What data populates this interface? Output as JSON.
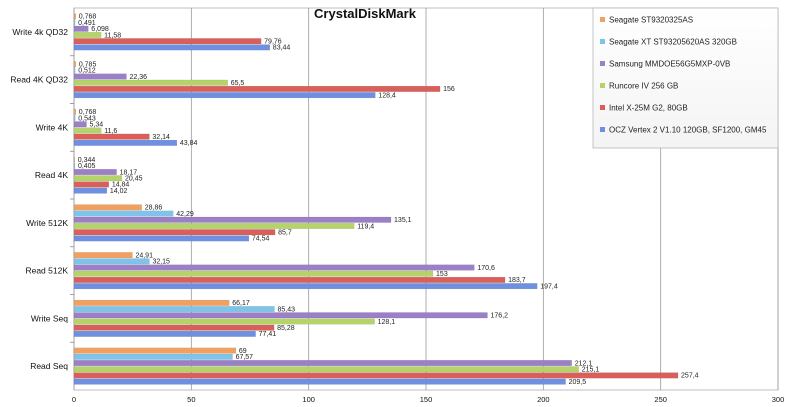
{
  "chart_data": {
    "type": "bar",
    "orientation": "horizontal",
    "title": "CrystalDiskMark",
    "xlabel": "",
    "ylabel": "",
    "xlim": [
      0,
      300
    ],
    "xticks": [
      0,
      50,
      100,
      150,
      200,
      250,
      300
    ],
    "grid": true,
    "legend_position": "top-right",
    "categories": [
      "Write 4k QD32",
      "Read 4K QD32",
      "Write 4K",
      "Read 4K",
      "Write 512K",
      "Read 512K",
      "Write Seq",
      "Read Seq"
    ],
    "series": [
      {
        "name": "Seagate ST9320325AS",
        "color": "#f0a060",
        "values": [
          0.768,
          0.785,
          0.768,
          0.344,
          28.86,
          24.91,
          66.17,
          69
        ],
        "labels": [
          "0,768",
          "0,785",
          "0,768",
          "0,344",
          "28,86",
          "24,91",
          "66,17",
          "69"
        ]
      },
      {
        "name": "Seagate XT ST93205620AS 320GB",
        "color": "#7fc3e8",
        "values": [
          0.491,
          0.512,
          0.543,
          0.405,
          42.29,
          32.15,
          85.43,
          67.57
        ],
        "labels": [
          "0,491",
          "0,512",
          "0,543",
          "0,405",
          "42,29",
          "32,15",
          "85,43",
          "67,57"
        ]
      },
      {
        "name": "Samsung MMDOE56G5MXP-0VB",
        "color": "#9b7fc7",
        "values": [
          6.098,
          22.36,
          5.34,
          18.17,
          135.1,
          170.6,
          176.2,
          212.1
        ],
        "labels": [
          "6,098",
          "22,36",
          "5,34",
          "18,17",
          "135,1",
          "170,6",
          "176,2",
          "212,1"
        ]
      },
      {
        "name": "Runcore IV 256 GB",
        "color": "#b5d36b",
        "values": [
          11.58,
          65.5,
          11.6,
          20.45,
          119.4,
          153,
          128.1,
          215.1
        ],
        "labels": [
          "11,58",
          "65,5",
          "11,6",
          "20,45",
          "119,4",
          "153",
          "128,1",
          "215,1"
        ]
      },
      {
        "name": "Intel X-25M G2, 80GB",
        "color": "#d9605a",
        "values": [
          79.76,
          156,
          32.14,
          14.84,
          85.7,
          183.7,
          85.28,
          257.4
        ],
        "labels": [
          "79,76",
          "156",
          "32,14",
          "14,84",
          "85,7",
          "183,7",
          "85,28",
          "257,4"
        ]
      },
      {
        "name": "OCZ Vertex 2 V1.10 120GB, SF1200, GM45",
        "color": "#6f8fe0",
        "values": [
          83.44,
          128.4,
          43.84,
          14.02,
          74.54,
          197.4,
          77.41,
          209.5
        ],
        "labels": [
          "83,44",
          "128,4",
          "43,84",
          "14,02",
          "74,54",
          "197,4",
          "77,41",
          "209,5"
        ]
      }
    ]
  }
}
